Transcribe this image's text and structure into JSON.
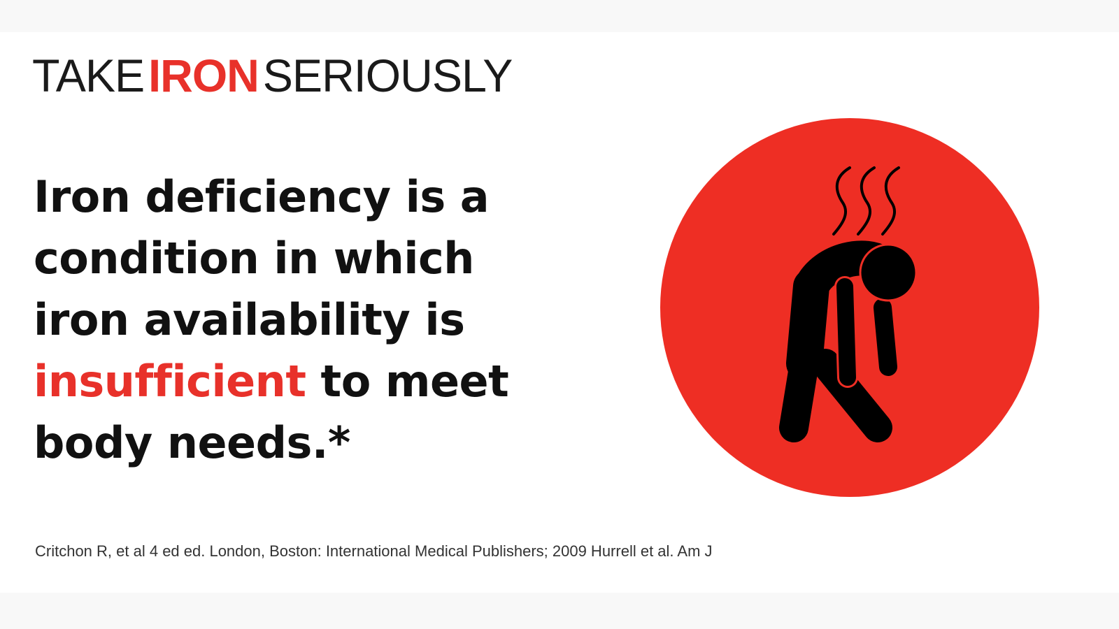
{
  "brand": {
    "part1": "TAKE",
    "part2": "IRON",
    "part3": "SERIOUSLY"
  },
  "headline": {
    "line1": "Iron deficiency is a",
    "line2": "condition in which",
    "line3": "iron availability is",
    "line4_highlight": "insufficient",
    "line4_rest": " to meet",
    "line5": "body needs.*"
  },
  "citation": "Critchon  R, et al 4 ed ed. London, Boston: International Medical Publishers; 2009 Hurrell et al. Am J",
  "colors": {
    "accent": "#e8312a",
    "circle": "#ee2e24",
    "text": "#111111"
  },
  "illustration": {
    "icon": "tired-person-icon"
  }
}
